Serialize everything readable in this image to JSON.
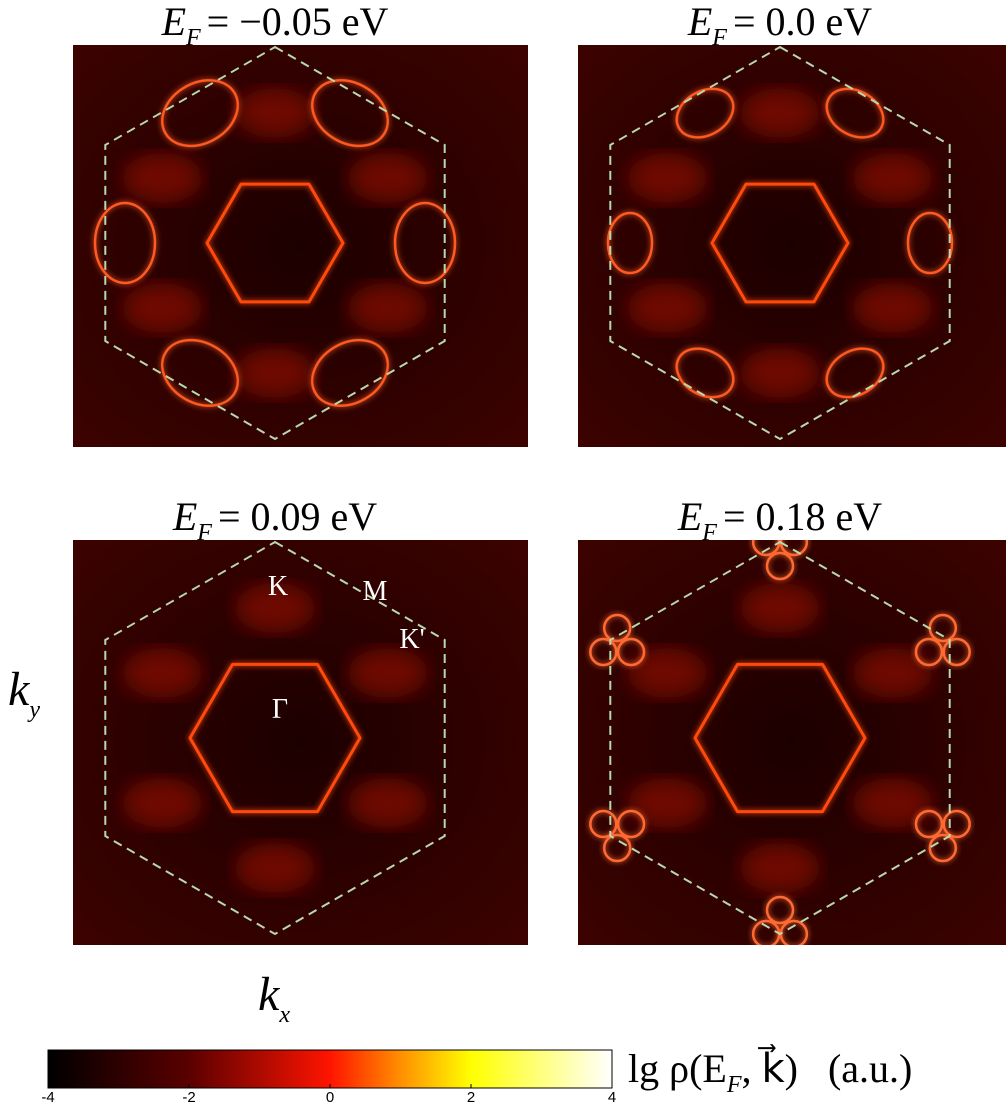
{
  "panels": [
    {
      "title": {
        "symbol": "E",
        "subscript": "F",
        "text": "= −0.05 eV"
      }
    },
    {
      "title": {
        "symbol": "E",
        "subscript": "F",
        "text": "= 0.0 eV"
      }
    },
    {
      "title": {
        "symbol": "E",
        "subscript": "F",
        "text": "= 0.09 eV"
      }
    },
    {
      "title": {
        "symbol": "E",
        "subscript": "F",
        "text": "= 0.18 eV"
      }
    }
  ],
  "axis_labels": {
    "x": {
      "symbol": "k",
      "subscript": "x"
    },
    "y": {
      "symbol": "k",
      "subscript": "y"
    }
  },
  "point_labels": [
    "K",
    "M",
    "K'",
    "Γ"
  ],
  "colorbar": {
    "lim": [
      -4,
      4
    ],
    "ticks": [
      -4,
      -2,
      0,
      2,
      4
    ],
    "label": {
      "prefix": "lg ρ(E",
      "subscript": "F",
      "suffix": ", k⃗)",
      "unit": "(a.u.)"
    }
  }
}
